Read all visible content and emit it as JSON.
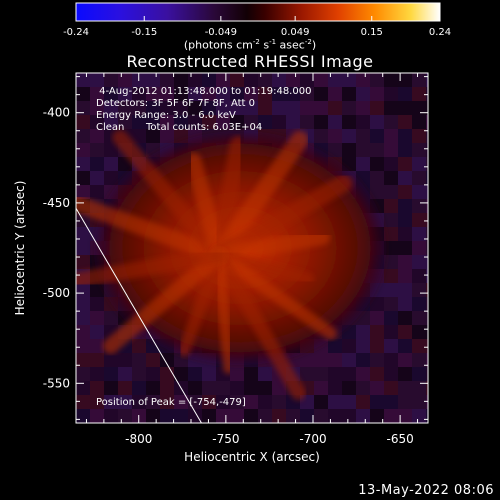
{
  "title": "Reconstructed RHESSI Image",
  "colorbar": {
    "ticks": [
      -0.24,
      -0.15,
      -0.049,
      0.049,
      0.15,
      0.24
    ],
    "tick_labels": [
      "-0.24",
      "-0.15",
      "-0.049",
      "0.049",
      "0.15",
      "0.24"
    ],
    "range": [
      -0.24,
      0.24
    ],
    "units_prefix": "(photons cm",
    "units_exp1": "-2",
    "units_mid": " s",
    "units_exp2": "-1",
    "units_mid2": " asec",
    "units_exp3": "-2",
    "units_suffix": ")"
  },
  "annotations": {
    "time": " 4-Aug-2012 01:13:48.000 to 01:19:48.000",
    "detectors": "Detectors: 3F 5F 6F 7F 8F, Att 0",
    "energy": "Energy Range: 3.0 - 6.0 keV",
    "clean": "Clean",
    "counts": "Total counts: 6.03E+04",
    "peak": "Position of Peak = [-754,-479]"
  },
  "footer": "13-May-2022 08:06",
  "colors": {
    "background": "#000000",
    "axes": "#ffffff",
    "limb": "#ffffff"
  },
  "chart_data": {
    "type": "heatmap",
    "title": "Reconstructed RHESSI Image",
    "xlabel": "Heliocentric X (arcsec)",
    "ylabel": "Heliocentric Y (arcsec)",
    "xlim": [
      -836,
      -634
    ],
    "ylim": [
      -572,
      -378
    ],
    "xticks": [
      -800,
      -750,
      -700,
      -650
    ],
    "yticks": [
      -400,
      -450,
      -500,
      -550
    ],
    "xtick_labels": [
      "-800",
      "-750",
      "-700",
      "-650"
    ],
    "ytick_labels": [
      "-400",
      "-450",
      "-500",
      "-550"
    ],
    "colormap": "hot (blue-purple negative, red-yellow-white positive)",
    "source": {
      "peak_x": -754,
      "peak_y": -479,
      "peak_value": 0.24
    },
    "limb_line": {
      "x": [
        -836,
        -764
      ],
      "y": [
        -453,
        -572
      ]
    }
  }
}
